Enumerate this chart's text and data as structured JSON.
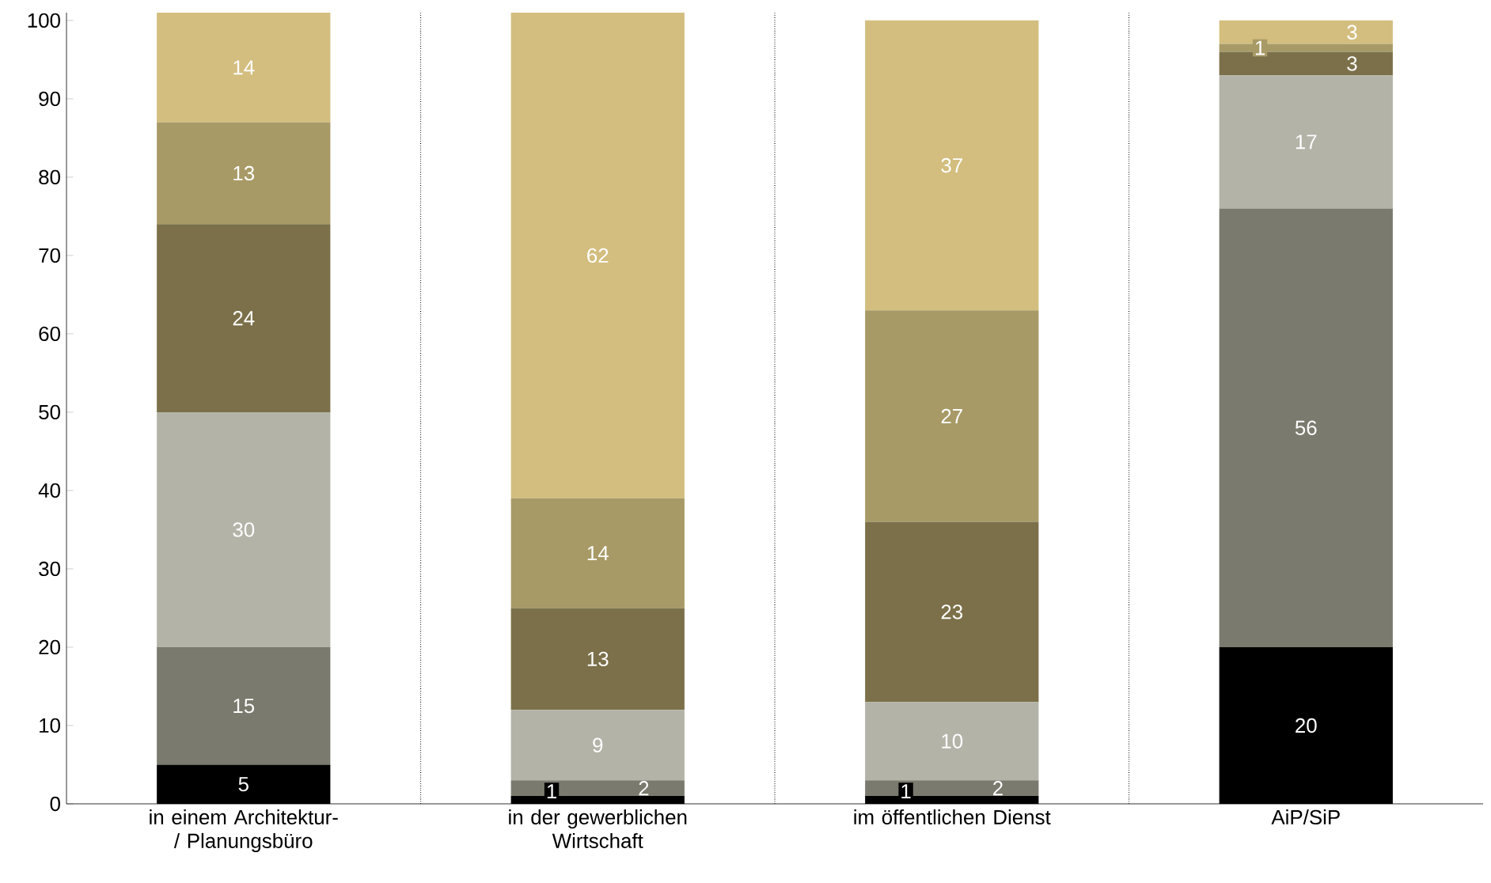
{
  "chart_data": {
    "type": "bar",
    "stacked": true,
    "categories": [
      "in einem Architektur-/ Planungsbüro",
      "in der gewerblichen Wirtschaft",
      "im öffentlichen Dienst",
      "AiP/SiP"
    ],
    "series": [
      {
        "color": "#000000",
        "values": [
          5,
          1,
          1,
          20
        ]
      },
      {
        "color": "#7a7a6e",
        "values": [
          15,
          2,
          2,
          56
        ]
      },
      {
        "color": "#b3b3a8",
        "values": [
          30,
          9,
          10,
          17
        ]
      },
      {
        "color": "#7b7049",
        "values": [
          24,
          13,
          23,
          3
        ]
      },
      {
        "color": "#a89a66",
        "values": [
          13,
          14,
          27,
          1
        ]
      },
      {
        "color": "#d3be7f",
        "values": [
          14,
          62,
          37,
          3
        ]
      }
    ],
    "ylim": [
      0,
      101
    ],
    "yticks": [
      0,
      10,
      20,
      30,
      40,
      50,
      60,
      70,
      80,
      90,
      100
    ],
    "grid": "x",
    "data_labels": true
  }
}
